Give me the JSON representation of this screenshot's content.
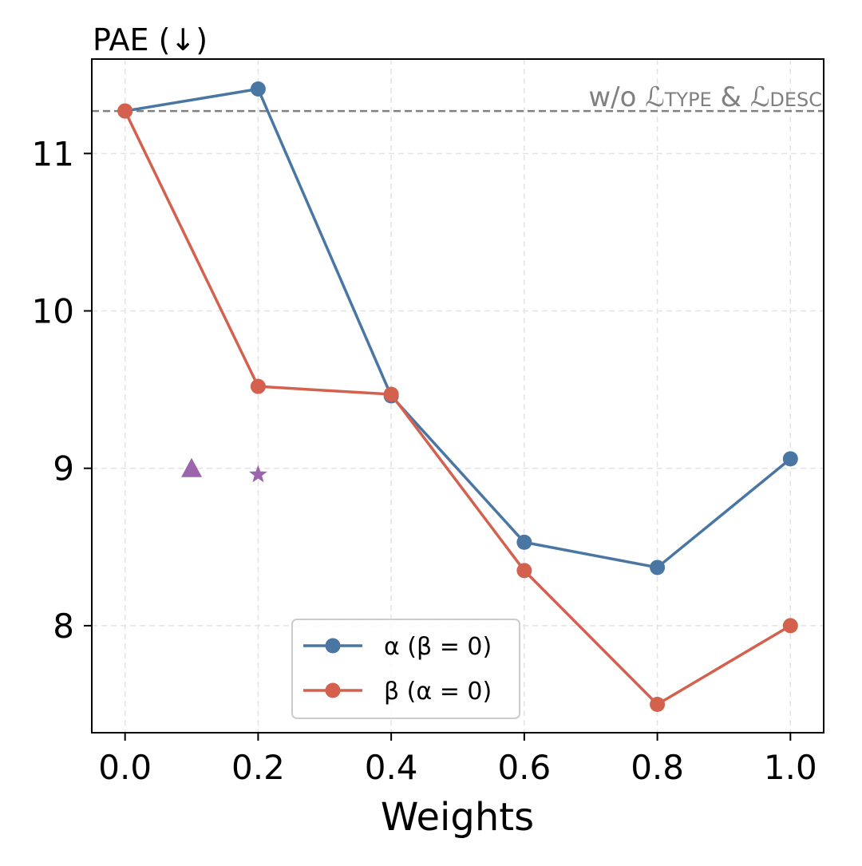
{
  "chart_data": {
    "type": "line",
    "ylabel": "PAE (↓)",
    "xlabel": "Weights",
    "xlim": [
      -0.05,
      1.05
    ],
    "ylim": [
      7.32,
      11.6
    ],
    "x_ticks": [
      "0.0",
      "0.2",
      "0.4",
      "0.6",
      "0.8",
      "1.0"
    ],
    "y_ticks": [
      "8",
      "9",
      "10",
      "11"
    ],
    "grid": true,
    "legend_position": "bottom-center",
    "series": [
      {
        "name": "α (β = 0)",
        "color": "#4a76a3",
        "x": [
          0.0,
          0.2,
          0.4,
          0.6,
          0.8,
          1.0
        ],
        "y": [
          11.27,
          11.41,
          9.46,
          8.53,
          8.37,
          9.06
        ]
      },
      {
        "name": "β (α = 0)",
        "color": "#d4604e",
        "x": [
          0.0,
          0.2,
          0.4,
          0.6,
          0.8,
          1.0
        ],
        "y": [
          11.27,
          9.52,
          9.47,
          8.35,
          7.5,
          8.0
        ]
      }
    ],
    "markers": [
      {
        "shape": "triangle",
        "x": 0.1,
        "y": 9.0,
        "color": "#9b64ad"
      },
      {
        "shape": "star",
        "x": 0.2,
        "y": 8.96,
        "color": "#9b64ad"
      }
    ],
    "reference_line": {
      "y": 11.27,
      "color": "#808080",
      "label": {
        "prefix": "w/o ",
        "script1": "ℒ",
        "sub1": "TYPE",
        "mid": " & ",
        "script2": "ℒ",
        "sub2": "DESC"
      }
    }
  }
}
